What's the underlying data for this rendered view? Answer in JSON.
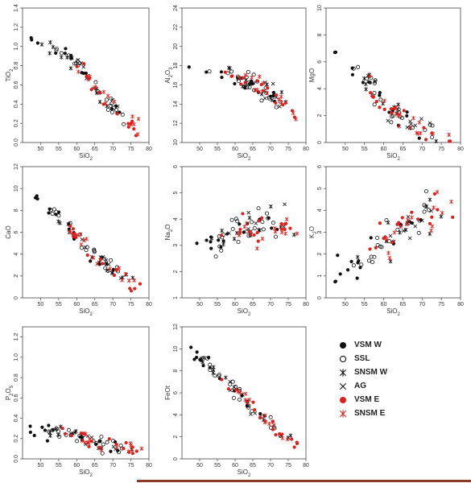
{
  "chart_data": {
    "type": "scatter",
    "colors": {
      "black": "#111111",
      "red": "#e0201c"
    },
    "legend": {
      "placement": "bottom-right",
      "entries": [
        {
          "label": "VSM W",
          "marker": "filled-circle",
          "color": "#111111"
        },
        {
          "label": "SSL",
          "marker": "open-circle",
          "color": "#111111"
        },
        {
          "label": "SNSM W",
          "marker": "asterisk",
          "color": "#111111"
        },
        {
          "label": "AG",
          "marker": "cross",
          "color": "#111111"
        },
        {
          "label": "VSM E",
          "marker": "filled-circle",
          "color": "#e0201c"
        },
        {
          "label": "SNSM E",
          "marker": "asterisk",
          "color": "#e0201c"
        }
      ]
    },
    "panels": [
      {
        "id": "tio2",
        "xlabel": "SiO2",
        "ylabel": "TiO2",
        "xlim": [
          45,
          80
        ],
        "ylim": [
          0,
          1.4
        ],
        "xticks": [
          "50",
          "55",
          "60",
          "65",
          "70",
          "75",
          "80"
        ],
        "yticks": [
          "0.0",
          "0.2",
          "0.4",
          "0.6",
          "0.8",
          "1.0",
          "1.2",
          "1.4"
        ],
        "trend": {
          "x": [
            48,
            52,
            56,
            60,
            64,
            68,
            72,
            76,
            79
          ],
          "y": [
            1.1,
            1.0,
            0.92,
            0.8,
            0.62,
            0.45,
            0.3,
            0.2,
            0.1
          ]
        },
        "noise": 0.09
      },
      {
        "id": "al2o3",
        "xlabel": "SiO2",
        "ylabel": "Al2O3",
        "xlim": [
          45,
          80
        ],
        "ylim": [
          10,
          24
        ],
        "xticks": [
          "50",
          "55",
          "60",
          "65",
          "70",
          "75",
          "80"
        ],
        "yticks": [
          "10",
          "12",
          "14",
          "16",
          "18",
          "20",
          "22",
          "24"
        ],
        "trend": {
          "x": [
            48,
            52,
            56,
            60,
            64,
            68,
            72,
            76,
            79
          ],
          "y": [
            18,
            17.8,
            17.4,
            16.8,
            16.2,
            15.4,
            14.5,
            13.4,
            12.3
          ]
        },
        "noise": 0.9
      },
      {
        "id": "mgo",
        "xlabel": "SiO2",
        "ylabel": "MgO",
        "xlim": [
          45,
          80
        ],
        "ylim": [
          0,
          10
        ],
        "xticks": [
          "50",
          "55",
          "60",
          "65",
          "70",
          "75",
          "80"
        ],
        "yticks": [
          "0",
          "2",
          "4",
          "6",
          "8",
          "10"
        ],
        "trend": {
          "x": [
            48,
            52,
            56,
            60,
            64,
            68,
            72,
            76,
            79
          ],
          "y": [
            7,
            5.5,
            4.2,
            3,
            2,
            1.3,
            0.8,
            0.4,
            0.2
          ]
        },
        "noise": 0.8
      },
      {
        "id": "cao",
        "xlabel": "SiO2",
        "ylabel": "CaO",
        "xlim": [
          45,
          80
        ],
        "ylim": [
          0,
          12
        ],
        "xticks": [
          "50",
          "55",
          "60",
          "65",
          "70",
          "75",
          "80"
        ],
        "yticks": [
          "0",
          "2",
          "4",
          "6",
          "8",
          "10",
          "12"
        ],
        "trend": {
          "x": [
            48,
            52,
            56,
            60,
            64,
            68,
            72,
            76,
            79
          ],
          "y": [
            9.5,
            8.5,
            7,
            5.5,
            4.2,
            3.2,
            2.2,
            1.2,
            0.4
          ]
        },
        "noise": 0.7
      },
      {
        "id": "na2o",
        "xlabel": "SiO2",
        "ylabel": "Na2O",
        "xlim": [
          45,
          80
        ],
        "ylim": [
          1,
          6
        ],
        "xticks": [
          "50",
          "55",
          "60",
          "65",
          "70",
          "75",
          "80"
        ],
        "yticks": [
          "1",
          "2",
          "3",
          "4",
          "5",
          "6"
        ],
        "trend": {
          "x": [
            48,
            52,
            56,
            60,
            64,
            68,
            72,
            76,
            79
          ],
          "y": [
            2.8,
            3,
            3.2,
            3.5,
            3.7,
            3.8,
            3.8,
            3.7,
            3.6
          ]
        },
        "noise": 0.55
      },
      {
        "id": "k2o",
        "xlabel": "SiO2",
        "ylabel": "K2O",
        "xlim": [
          45,
          80
        ],
        "ylim": [
          0,
          6
        ],
        "xticks": [
          "50",
          "55",
          "60",
          "65",
          "70",
          "75",
          "80"
        ],
        "yticks": [
          "0",
          "1",
          "2",
          "3",
          "4",
          "5",
          "6"
        ],
        "trend": {
          "x": [
            48,
            52,
            56,
            60,
            64,
            68,
            72,
            76,
            79
          ],
          "y": [
            1.2,
            1.6,
            2,
            2.5,
            3,
            3.5,
            3.8,
            4.1,
            4.5
          ]
        },
        "noise": 0.85
      },
      {
        "id": "p2o5",
        "xlabel": "SiO2",
        "ylabel": "P2O5",
        "xlim": [
          45,
          80
        ],
        "ylim": [
          0,
          1.3
        ],
        "xticks": [
          "50",
          "55",
          "60",
          "65",
          "70",
          "75",
          "80"
        ],
        "yticks": [
          "0.0",
          "0.2",
          "0.4",
          "0.6",
          "0.8",
          "1.0",
          "1.2"
        ],
        "trend": {
          "x": [
            48,
            52,
            56,
            60,
            64,
            68,
            72,
            76,
            79
          ],
          "y": [
            0.28,
            0.26,
            0.24,
            0.21,
            0.18,
            0.15,
            0.12,
            0.08,
            0.05
          ]
        },
        "noise": 0.07
      },
      {
        "id": "feot",
        "xlabel": "SiO2",
        "ylabel": "FeOt",
        "xlim": [
          45,
          80
        ],
        "ylim": [
          0,
          12
        ],
        "xticks": [
          "50",
          "55",
          "60",
          "65",
          "70",
          "75",
          "80"
        ],
        "yticks": [
          "0",
          "2",
          "4",
          "6",
          "8",
          "10",
          "12"
        ],
        "trend": {
          "x": [
            48,
            52,
            56,
            60,
            64,
            68,
            72,
            76,
            79
          ],
          "y": [
            9.5,
            8.7,
            7.6,
            6.3,
            5,
            3.8,
            2.6,
            1.5,
            0.8
          ]
        },
        "noise": 0.6
      }
    ]
  }
}
